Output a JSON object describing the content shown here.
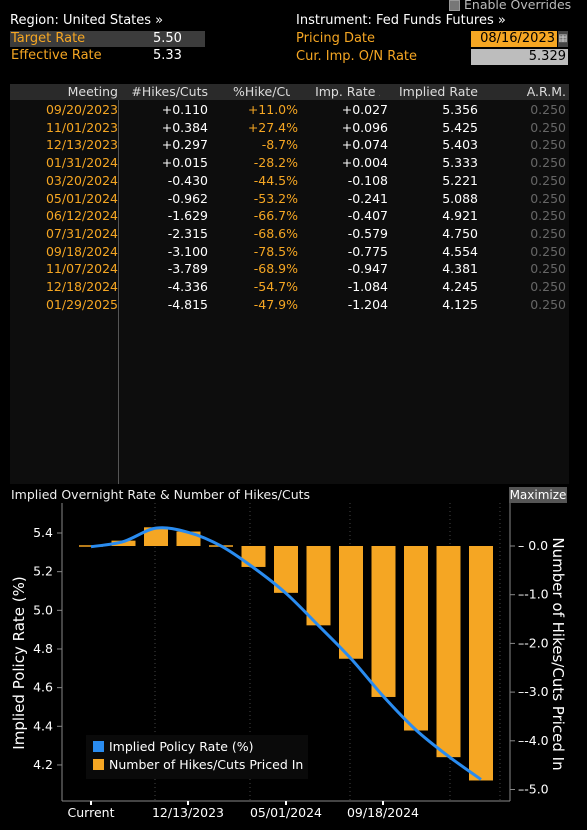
{
  "header": {
    "region_label": "Region: United States »",
    "instrument_label": "Instrument: Fed Funds Futures »",
    "enable_overrides": "Enable Overrides",
    "target_rate_label": "Target Rate",
    "target_rate_value": "5.50",
    "effective_rate_label": "Effective Rate",
    "effective_rate_value": "5.33",
    "pricing_date_label": "Pricing Date",
    "pricing_date_value": "08/16/2023",
    "cur_imp_label": "Cur. Imp. O/N Rate",
    "cur_imp_value": "5.329"
  },
  "table": {
    "headers": [
      "Meeting",
      "#Hikes/Cuts",
      "%Hike/Cut",
      "Imp. Rate Δ",
      "Implied Rate",
      "A.R.M."
    ],
    "rows": [
      [
        "09/20/2023",
        "+0.110",
        "+11.0%",
        "+0.027",
        "5.356",
        "0.250"
      ],
      [
        "11/01/2023",
        "+0.384",
        "+27.4%",
        "+0.096",
        "5.425",
        "0.250"
      ],
      [
        "12/13/2023",
        "+0.297",
        "-8.7%",
        "+0.074",
        "5.403",
        "0.250"
      ],
      [
        "01/31/2024",
        "+0.015",
        "-28.2%",
        "+0.004",
        "5.333",
        "0.250"
      ],
      [
        "03/20/2024",
        "-0.430",
        "-44.5%",
        "-0.108",
        "5.221",
        "0.250"
      ],
      [
        "05/01/2024",
        "-0.962",
        "-53.2%",
        "-0.241",
        "5.088",
        "0.250"
      ],
      [
        "06/12/2024",
        "-1.629",
        "-66.7%",
        "-0.407",
        "4.921",
        "0.250"
      ],
      [
        "07/31/2024",
        "-2.315",
        "-68.6%",
        "-0.579",
        "4.750",
        "0.250"
      ],
      [
        "09/18/2024",
        "-3.100",
        "-78.5%",
        "-0.775",
        "4.554",
        "0.250"
      ],
      [
        "11/07/2024",
        "-3.789",
        "-68.9%",
        "-0.947",
        "4.381",
        "0.250"
      ],
      [
        "12/18/2024",
        "-4.336",
        "-54.7%",
        "-1.084",
        "4.245",
        "0.250"
      ],
      [
        "01/29/2025",
        "-4.815",
        "-47.9%",
        "-1.204",
        "4.125",
        "0.250"
      ]
    ]
  },
  "chart_title": "Implied Overnight Rate & Number of Hikes/Cuts",
  "maximize_label": "Maximize",
  "colors": {
    "accent": "#f5a623",
    "line": "#2a8cf0",
    "background": "#000000"
  },
  "chart_data": {
    "type": "bar",
    "x_tick_labels": [
      "Current",
      "12/13/2023",
      "05/01/2024",
      "09/18/2024"
    ],
    "categories": [
      "Current",
      "09/20/2023",
      "11/01/2023",
      "12/13/2023",
      "01/31/2024",
      "03/20/2024",
      "05/01/2024",
      "06/12/2024",
      "07/31/2024",
      "09/18/2024",
      "11/07/2024",
      "12/18/2024",
      "01/29/2025"
    ],
    "series": [
      {
        "name": "Implied Policy Rate (%)",
        "type": "line",
        "axis": "left",
        "values": [
          5.329,
          5.356,
          5.425,
          5.403,
          5.333,
          5.221,
          5.088,
          4.921,
          4.75,
          4.554,
          4.381,
          4.245,
          4.125
        ]
      },
      {
        "name": "Number of Hikes/Cuts Priced In",
        "type": "bar",
        "axis": "right",
        "values": [
          null,
          0.11,
          0.384,
          0.297,
          0.015,
          -0.43,
          -0.962,
          -1.629,
          -2.315,
          -3.1,
          -3.789,
          -4.336,
          -4.815
        ]
      }
    ],
    "ylabel_left": "Implied Policy Rate (%)",
    "ylabel_right": "Number of Hikes/Cuts Priced In",
    "yticks_left": [
      "5.4",
      "5.2",
      "5.0",
      "4.8",
      "4.6",
      "4.4",
      "4.2"
    ],
    "yticks_right": [
      "0.0",
      "-1.0",
      "-2.0",
      "-3.0",
      "-4.0",
      "-5.0"
    ],
    "ylim_left": [
      4.1,
      5.5
    ],
    "ylim_right": [
      -5.0,
      0.3
    ],
    "legend": "bottom-left"
  }
}
